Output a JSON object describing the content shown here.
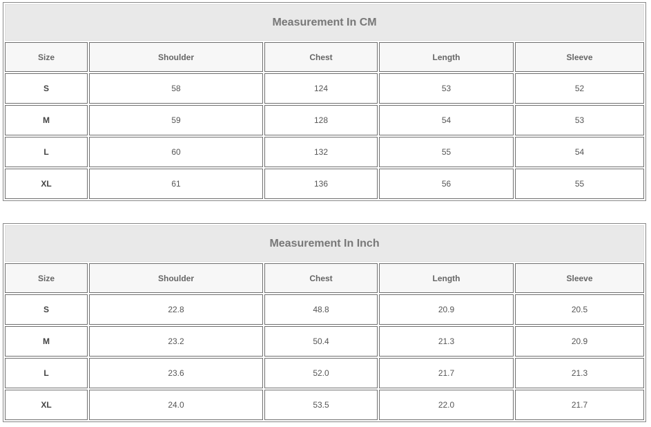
{
  "tables": [
    {
      "title": "Measurement In CM",
      "headers": [
        "Size",
        "Shoulder",
        "Chest",
        "Length",
        "Sleeve"
      ],
      "rows": [
        [
          "S",
          "58",
          "124",
          "53",
          "52"
        ],
        [
          "M",
          "59",
          "128",
          "54",
          "53"
        ],
        [
          "L",
          "60",
          "132",
          "55",
          "54"
        ],
        [
          "XL",
          "61",
          "136",
          "56",
          "55"
        ]
      ]
    },
    {
      "title": "Measurement In Inch",
      "headers": [
        "Size",
        "Shoulder",
        "Chest",
        "Length",
        "Sleeve"
      ],
      "rows": [
        [
          "S",
          "22.8",
          "48.8",
          "20.9",
          "20.5"
        ],
        [
          "M",
          "23.2",
          "50.4",
          "21.3",
          "20.9"
        ],
        [
          "L",
          "23.6",
          "52.0",
          "21.7",
          "21.3"
        ],
        [
          "XL",
          "24.0",
          "53.5",
          "22.0",
          "21.7"
        ]
      ]
    }
  ]
}
